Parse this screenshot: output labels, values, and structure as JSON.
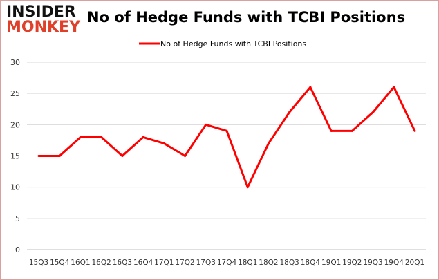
{
  "logo": {
    "line1": "INSIDER",
    "line2": "MONKEY"
  },
  "chart_data": {
    "type": "line",
    "title": "No of Hedge Funds with TCBI Positions",
    "categories": [
      "15Q3",
      "15Q4",
      "16Q1",
      "16Q2",
      "16Q3",
      "16Q4",
      "17Q1",
      "17Q2",
      "17Q3",
      "17Q4",
      "18Q1",
      "18Q2",
      "18Q3",
      "18Q4",
      "19Q1",
      "19Q2",
      "19Q3",
      "19Q4",
      "20Q1"
    ],
    "series": [
      {
        "name": "No of Hedge Funds with TCBI Positions",
        "color": "#ff0000",
        "values": [
          15,
          15,
          18,
          18,
          15,
          18,
          17,
          15,
          20,
          19,
          10,
          17,
          22,
          26,
          19,
          19,
          22,
          26,
          19
        ]
      }
    ],
    "ylim": [
      0,
      30
    ],
    "yticks": [
      0,
      5,
      10,
      15,
      20,
      25,
      30
    ],
    "grid": true,
    "legend": "top-center",
    "xlabel": "",
    "ylabel": ""
  }
}
